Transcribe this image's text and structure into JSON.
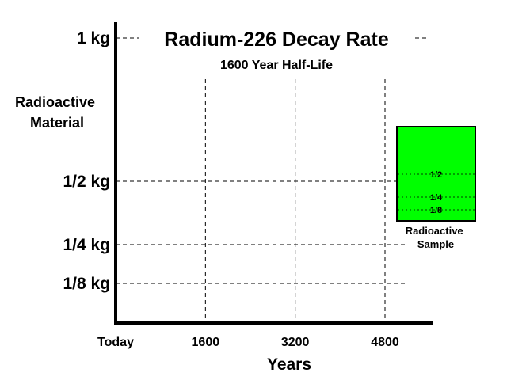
{
  "chart_data": {
    "type": "line",
    "title": "Radium-226 Decay Rate",
    "subtitle": "1600 Year Half-Life",
    "ylabel": [
      "Radioactive",
      "Material"
    ],
    "xlabel": "Years",
    "x_ticks": [
      {
        "value": 0,
        "label": "Today"
      },
      {
        "value": 1600,
        "label": "1600"
      },
      {
        "value": 3200,
        "label": "3200"
      },
      {
        "value": 4800,
        "label": "4800"
      }
    ],
    "y_ticks": [
      {
        "value": 1,
        "label": "1 kg"
      },
      {
        "value": 0.5,
        "label": "1/2 kg"
      },
      {
        "value": 0.25,
        "label": "1/4 kg"
      },
      {
        "value": 0.125,
        "label": "1/8 kg"
      }
    ],
    "xlim": [
      0,
      5800
    ],
    "grid": "dashed",
    "series": [],
    "sample": {
      "label": [
        "Radioactive",
        "Sample"
      ],
      "color": "#00ff00",
      "levels": [
        {
          "value": 0.5,
          "label": "1/2"
        },
        {
          "value": 0.25,
          "label": "1/4"
        },
        {
          "value": 0.125,
          "label": "1/8"
        }
      ]
    }
  }
}
